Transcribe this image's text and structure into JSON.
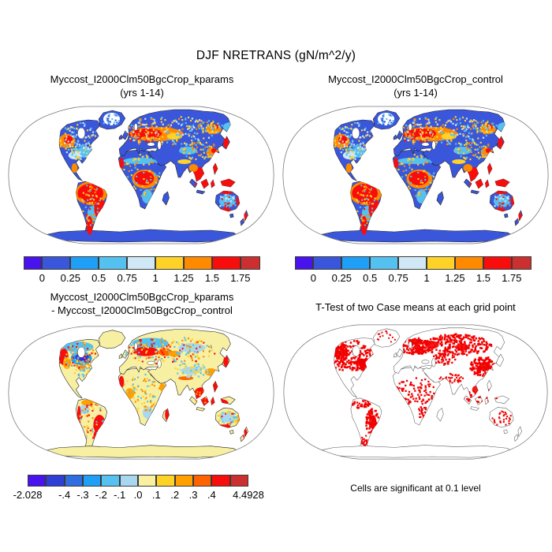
{
  "figure_title": "DJF NRETRANS (gN/m^2/y)",
  "panels": {
    "kparams": {
      "title": "Myccost_I2000Clm50BgcCrop_kparams",
      "subtitle": "(yrs 1-14)"
    },
    "control": {
      "title": "Myccost_I2000Clm50BgcCrop_control",
      "subtitle": "(yrs 1-14)"
    },
    "difference": {
      "title": "Myccost_I2000Clm50BgcCrop_kparams",
      "subtitle": "- Myccost_I2000Clm50BgcCrop_control"
    },
    "ttest": {
      "title": "T-Test of two Case means at each grid point",
      "caption": "Cells are significant at 0.1 level"
    }
  },
  "map_colors": {
    "top_land": "#3A57DB",
    "diff_land": "#F7F0A2",
    "ttest_land": "#FFFFFF",
    "ocean": "#FFFFFF",
    "outline": "#222222",
    "border": "#777777",
    "significant": "#F20000"
  },
  "chart_data": [
    {
      "type": "heatmap",
      "panel": "top-left",
      "title": "Myccost_I2000Clm50BgcCrop_kparams (yrs 1-14)",
      "variable": "NRETRANS",
      "season": "DJF",
      "units": "gN/m^2/y",
      "projection": "robinson global map",
      "colorbar": {
        "tick_labels": [
          "0",
          "0.25",
          "0.5",
          "0.75",
          "1",
          "1.25",
          "1.5",
          "1.75"
        ],
        "colors": [
          "#4813EC",
          "#3A57DB",
          "#1FA0F6",
          "#55C1F0",
          "#D0E7F6",
          "#FFD228",
          "#FF8A00",
          "#F80D0D",
          "#CB2F2F"
        ],
        "cell_weights": [
          0.65,
          1,
          1,
          1,
          1,
          1,
          1,
          1,
          0.7
        ],
        "label_slots": [
          1,
          2,
          3,
          4,
          5,
          6,
          7,
          8
        ]
      }
    },
    {
      "type": "heatmap",
      "panel": "top-right",
      "title": "Myccost_I2000Clm50BgcCrop_control (yrs 1-14)",
      "variable": "NRETRANS",
      "season": "DJF",
      "units": "gN/m^2/y",
      "projection": "robinson global map",
      "colorbar": {
        "tick_labels": [
          "0",
          "0.25",
          "0.5",
          "0.75",
          "1",
          "1.25",
          "1.5",
          "1.75"
        ],
        "colors": [
          "#4813EC",
          "#3A57DB",
          "#1FA0F6",
          "#55C1F0",
          "#D0E7F6",
          "#FFD228",
          "#FF8A00",
          "#F80D0D",
          "#CB2F2F"
        ],
        "cell_weights": [
          0.65,
          1,
          1,
          1,
          1,
          1,
          1,
          1,
          0.7
        ],
        "label_slots": [
          1,
          2,
          3,
          4,
          5,
          6,
          7,
          8
        ]
      }
    },
    {
      "type": "heatmap",
      "panel": "bottom-left",
      "title": "Myccost_I2000Clm50BgcCrop_kparams - Myccost_I2000Clm50BgcCrop_control",
      "variable": "NRETRANS difference",
      "units": "gN/m^2/y",
      "data_min": -2.028,
      "data_max": 4.4928,
      "projection": "robinson global map",
      "colorbar": {
        "tick_labels": [
          "-2.028",
          "-.4",
          "-.3",
          "-.2",
          "-.1",
          ".0",
          ".1",
          ".2",
          ".3",
          ".4",
          "4.4928"
        ],
        "colors": [
          "#4813EC",
          "#2E3FD8",
          "#2E6EE0",
          "#1FA0F6",
          "#55C1F0",
          "#A8D8F0",
          "#F9F0A0",
          "#FFD228",
          "#FFA000",
          "#FF6400",
          "#F80D0D",
          "#CB2F2F"
        ],
        "cell_weights": [
          1,
          1,
          1,
          1,
          1,
          1,
          1,
          1,
          1,
          1,
          1,
          1
        ],
        "label_slots": [
          0,
          2,
          3,
          4,
          5,
          6,
          7,
          8,
          9,
          10,
          12
        ]
      }
    },
    {
      "type": "map",
      "panel": "bottom-right",
      "title": "T-Test of two Case means at each grid point",
      "significant_color": "#F20000",
      "caption": "Cells are significant at 0.1 level",
      "projection": "robinson global map"
    }
  ]
}
